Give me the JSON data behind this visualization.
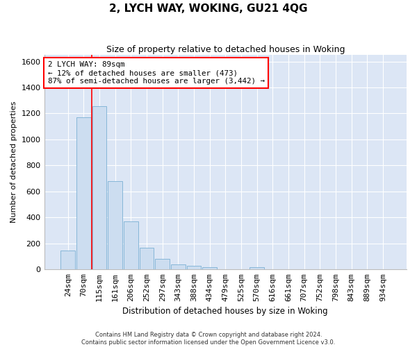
{
  "title": "2, LYCH WAY, WOKING, GU21 4QG",
  "subtitle": "Size of property relative to detached houses in Woking",
  "xlabel": "Distribution of detached houses by size in Woking",
  "ylabel": "Number of detached properties",
  "bar_color": "#ccddf0",
  "bar_edge_color": "#7aafd4",
  "background_color": "#dce6f5",
  "grid_color": "#ffffff",
  "fig_background": "#ffffff",
  "categories": [
    "24sqm",
    "70sqm",
    "115sqm",
    "161sqm",
    "206sqm",
    "252sqm",
    "297sqm",
    "343sqm",
    "388sqm",
    "434sqm",
    "479sqm",
    "525sqm",
    "570sqm",
    "616sqm",
    "661sqm",
    "707sqm",
    "752sqm",
    "798sqm",
    "843sqm",
    "889sqm",
    "934sqm"
  ],
  "values": [
    145,
    1170,
    1255,
    680,
    370,
    165,
    83,
    38,
    28,
    20,
    0,
    0,
    18,
    0,
    0,
    0,
    0,
    0,
    0,
    0,
    0
  ],
  "ylim": [
    0,
    1650
  ],
  "yticks": [
    0,
    200,
    400,
    600,
    800,
    1000,
    1200,
    1400,
    1600
  ],
  "redline_x": 1.5,
  "annotation_text_line1": "2 LYCH WAY: 89sqm",
  "annotation_text_line2": "← 12% of detached houses are smaller (473)",
  "annotation_text_line3": "87% of semi-detached houses are larger (3,442) →",
  "footer_line1": "Contains HM Land Registry data © Crown copyright and database right 2024.",
  "footer_line2": "Contains public sector information licensed under the Open Government Licence v3.0."
}
